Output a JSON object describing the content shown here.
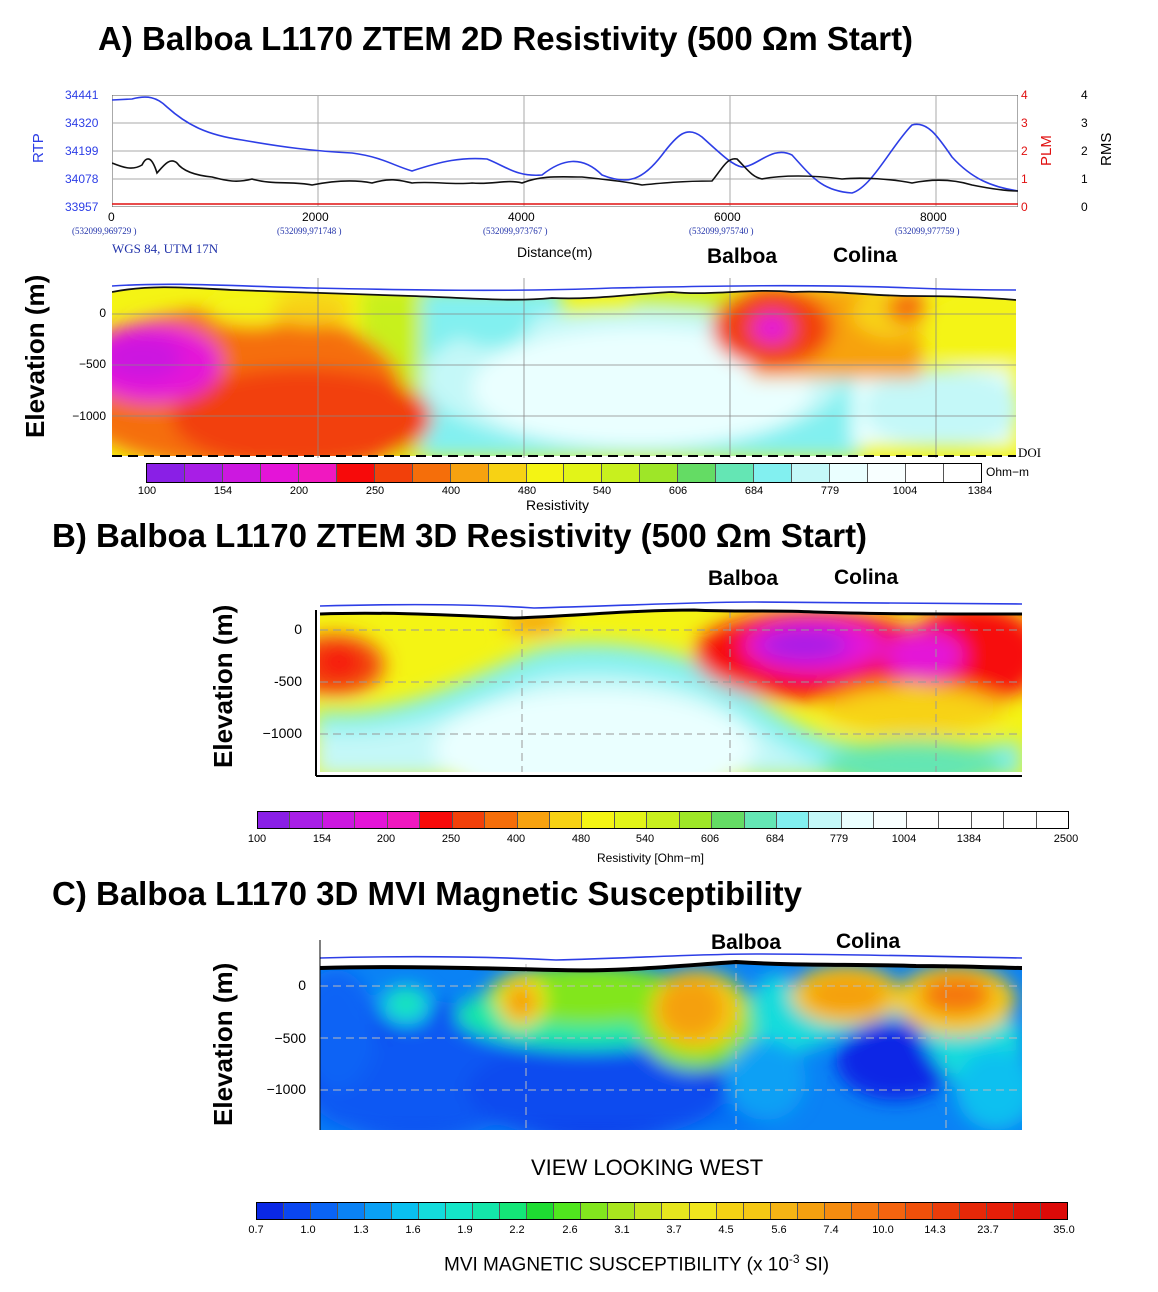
{
  "panelA": {
    "title": "A) Balboa L1170 ZTEM 2D Resistivity (500 Ωm Start)",
    "rtp_label": "RTP",
    "plm_label": "PLM",
    "rms_label": "RMS",
    "rtp_ticks": [
      "34441",
      "34320",
      "34199",
      "34078",
      "33957"
    ],
    "plm_ticks": [
      "4",
      "3",
      "2",
      "1",
      "0"
    ],
    "rms_ticks": [
      "4",
      "3",
      "2",
      "1",
      "0"
    ],
    "distance_ticks": [
      "0",
      "2000",
      "4000",
      "6000",
      "8000"
    ],
    "coord_ticks": [
      "(532099,969729 )",
      "(532099,971748 )",
      "(532099,973767 )",
      "(532099,975740 )",
      "(532099,977759 )"
    ],
    "projection": "WGS 84, UTM 17N",
    "distance_label": "Distance(m)",
    "balboa": "Balboa",
    "colina": "Colina",
    "elevation_label": "Elevation (m)",
    "elev_ticks": [
      "0",
      "−500",
      "−1000"
    ],
    "doi": "DOI",
    "colorbar_unit": "Ohm−m",
    "colorbar_ticks": [
      "100",
      "154",
      "200",
      "250",
      "400",
      "480",
      "540",
      "606",
      "684",
      "779",
      "1004",
      "1384"
    ],
    "colorbar_title": "Resistivity"
  },
  "panelB": {
    "title": "B) Balboa L1170 ZTEM 3D Resistivity (500 Ωm Start)",
    "balboa": "Balboa",
    "colina": "Colina",
    "elevation_label": "Elevation (m)",
    "elev_ticks": [
      "0",
      "-500",
      "−1000"
    ],
    "colorbar_ticks": [
      "100",
      "154",
      "200",
      "250",
      "400",
      "480",
      "540",
      "606",
      "684",
      "779",
      "1004",
      "1384",
      "2500"
    ],
    "colorbar_title": "Resistivity [Ohm−m]"
  },
  "panelC": {
    "title": "C) Balboa L1170  3D MVI Magnetic Susceptibility",
    "balboa": "Balboa",
    "colina": "Colina",
    "elevation_label": "Elevation (m)",
    "elev_ticks": [
      "0",
      "−500",
      "−1000"
    ],
    "view_label": "VIEW LOOKING WEST",
    "colorbar_ticks": [
      "0.7",
      "1.0",
      "1.3",
      "1.6",
      "1.9",
      "2.2",
      "2.6",
      "3.1",
      "3.7",
      "4.5",
      "5.6",
      "7.4",
      "10.0",
      "14.3",
      "23.7",
      "35.0"
    ],
    "colorbar_title": "MVI MAGNETIC SUSCEPTIBILITY  (x 10",
    "colorbar_title_sup": "-3",
    "colorbar_title_end": " SI)"
  },
  "colors": {
    "resistivity": [
      "#8a1fe6",
      "#a81ee6",
      "#cc18e0",
      "#e414d8",
      "#f018c0",
      "#f70a0a",
      "#f2400a",
      "#f56e0a",
      "#f7a20f",
      "#f7d214",
      "#f4f414",
      "#e2f418",
      "#c8f01e",
      "#9ee628",
      "#64dc64",
      "#64e6b4",
      "#82f0f0",
      "#c4f8f8",
      "#eaffff"
    ],
    "mvi": [
      "#0a28e6",
      "#0a46f0",
      "#0a64f5",
      "#0a82f5",
      "#0aa0f5",
      "#0ac0f0",
      "#14dcdc",
      "#14e6aa",
      "#1edc32",
      "#82e61e",
      "#c8e61e",
      "#f0e61e",
      "#f5c814",
      "#f5a00f",
      "#f5780f",
      "#f0500a",
      "#e62808"
    ],
    "rtp_line": "#2d3ee6",
    "plm_line": "#e01010"
  }
}
